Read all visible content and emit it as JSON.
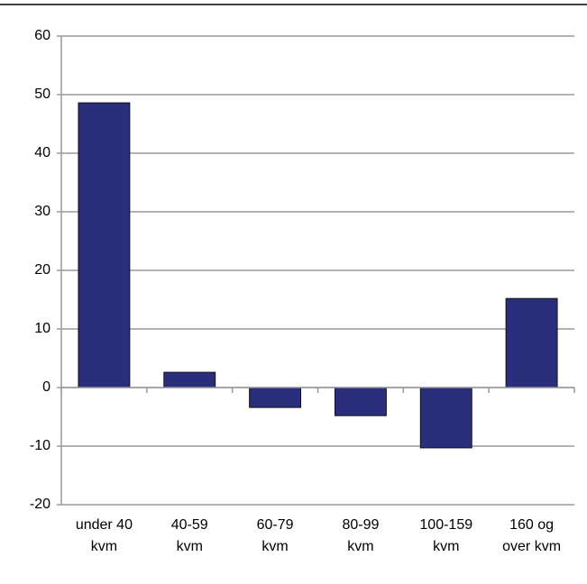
{
  "chart_data": {
    "type": "bar",
    "categories": [
      "under 40 kvm",
      "40-59 kvm",
      "60-79 kvm",
      "80-99 kvm",
      "100-159 kvm",
      "160 og over kvm"
    ],
    "values": [
      48.6,
      2.6,
      -3.4,
      -4.8,
      -10.3,
      15.2
    ],
    "color": "#2b2f7b",
    "ylim": [
      -20,
      60
    ],
    "yticks": [
      -20,
      -10,
      0,
      10,
      20,
      30,
      40,
      50,
      60
    ],
    "grid": true
  }
}
